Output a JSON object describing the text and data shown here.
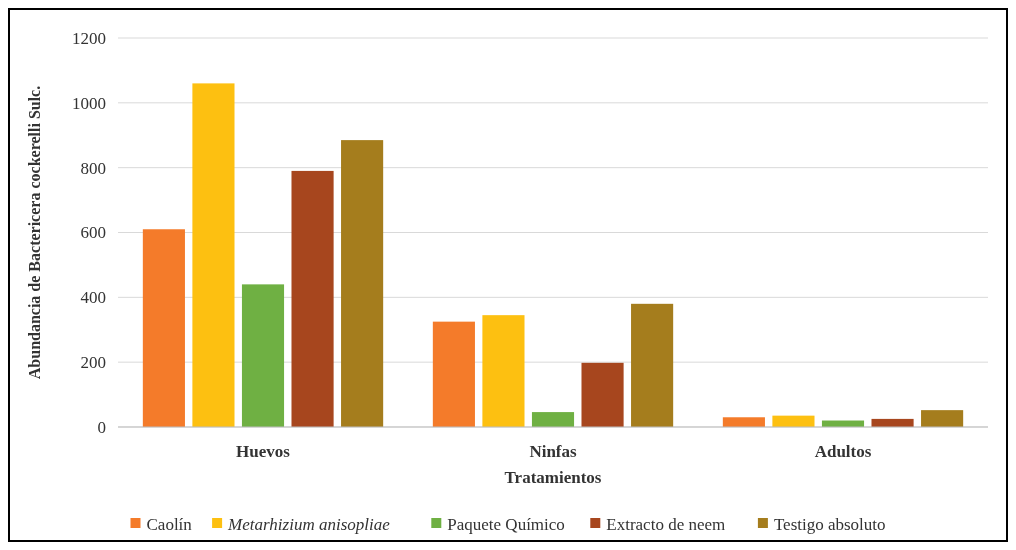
{
  "chart_data": {
    "type": "bar",
    "xlabel": "Tratamientos",
    "ylabel": "Abundancia de Bactericera cockerelli Sulc.",
    "categories": [
      "Huevos",
      "Ninfas",
      "Adultos"
    ],
    "series": [
      {
        "name": "Caolín",
        "color": "#f47b2a",
        "values": [
          610,
          325,
          30
        ]
      },
      {
        "name": "Metarhizium anisopliae",
        "color": "#fdc011",
        "values": [
          1060,
          345,
          35
        ]
      },
      {
        "name": "Paquete Químico",
        "color": "#6fb043",
        "values": [
          440,
          46,
          20
        ]
      },
      {
        "name": "Extracto de neem",
        "color": "#a7461e",
        "values": [
          790,
          198,
          25
        ]
      },
      {
        "name": "Testigo absoluto",
        "color": "#a57d1d",
        "values": [
          885,
          380,
          52
        ]
      }
    ],
    "ylim": [
      0,
      1200
    ],
    "yticks": [
      0,
      200,
      400,
      600,
      800,
      1000,
      1200
    ],
    "grid": "y",
    "legend": "bottom"
  }
}
